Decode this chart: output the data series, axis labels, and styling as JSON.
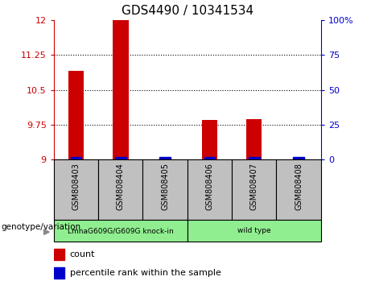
{
  "title": "GDS4490 / 10341534",
  "samples": [
    "GSM808403",
    "GSM808404",
    "GSM808405",
    "GSM808406",
    "GSM808407",
    "GSM808408"
  ],
  "count_values": [
    10.9,
    12.0,
    9.0,
    9.85,
    9.87,
    9.0
  ],
  "percentile_values": [
    3,
    3,
    1,
    3,
    3,
    1
  ],
  "ylim_left": [
    9.0,
    12.0
  ],
  "ylim_right": [
    0,
    100
  ],
  "yticks_left": [
    9,
    9.75,
    10.5,
    11.25,
    12
  ],
  "ytick_labels_left": [
    "9",
    "9.75",
    "10.5",
    "11.25",
    "12"
  ],
  "yticks_right": [
    0,
    25,
    50,
    75,
    100
  ],
  "ytick_labels_right": [
    "0",
    "25",
    "50",
    "75",
    "100%"
  ],
  "bar_color": "#cc0000",
  "percentile_color": "#0000cc",
  "sample_box_color": "#c0c0c0",
  "groups": [
    {
      "label": "LmnaG609G/G609G knock-in",
      "color": "#90ee90",
      "start": 0,
      "end": 2
    },
    {
      "label": "wild type",
      "color": "#90ee90",
      "start": 3,
      "end": 5
    }
  ],
  "group_label_prefix": "genotype/variation",
  "legend_count_label": "count",
  "legend_percentile_label": "percentile rank within the sample",
  "background_color": "#ffffff",
  "bar_width": 0.35,
  "percentile_square_size": 0.25
}
